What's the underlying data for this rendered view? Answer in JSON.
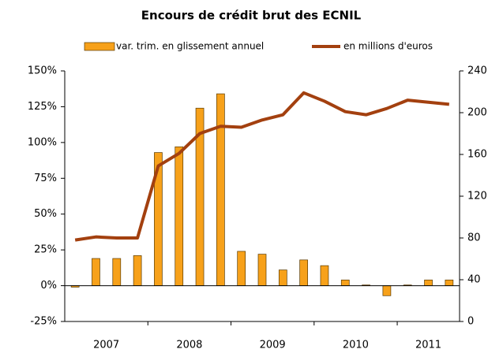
{
  "chart_data": {
    "type": "bar_line",
    "title": "Encours de crédit brut des ECNIL",
    "categories": [
      null,
      null,
      null,
      null,
      null,
      null,
      null,
      null,
      null,
      null,
      null,
      null,
      null,
      null,
      null,
      null,
      null,
      null,
      null
    ],
    "x_groups": [
      {
        "label": "2007",
        "size": 4
      },
      {
        "label": "2008",
        "size": 4
      },
      {
        "label": "2009",
        "size": 4
      },
      {
        "label": "2010",
        "size": 4
      },
      {
        "label": "2011",
        "size": 3
      }
    ],
    "series": [
      {
        "name": "var. trim. en glissement annuel",
        "kind": "bar",
        "color": "#f7a11a",
        "axis": "y",
        "values": [
          -1,
          19,
          19,
          21,
          93,
          97,
          124,
          134,
          24,
          22,
          11,
          18,
          14,
          4,
          0.5,
          -7,
          0.5,
          4,
          4
        ]
      },
      {
        "name": "en millions d'euros",
        "kind": "line",
        "color": "#a3400f",
        "axis": "y2",
        "values": [
          78,
          81,
          80,
          80,
          149,
          161,
          180,
          187,
          186,
          193,
          198,
          219,
          211,
          201,
          198,
          204,
          212,
          210,
          208
        ]
      }
    ],
    "ylim": [
      -25,
      150
    ],
    "yticks": [
      {
        "value": -25,
        "label": "-25%"
      },
      {
        "value": 0,
        "label": "0%"
      },
      {
        "value": 25,
        "label": "25%"
      },
      {
        "value": 50,
        "label": "50%"
      },
      {
        "value": 75,
        "label": "75%"
      },
      {
        "value": 100,
        "label": "100%"
      },
      {
        "value": 125,
        "label": "125%"
      },
      {
        "value": 150,
        "label": "150%"
      }
    ],
    "y2lim": [
      0,
      240
    ],
    "y2ticks": [
      0,
      40,
      80,
      120,
      160,
      200,
      240
    ],
    "legend": "top"
  }
}
